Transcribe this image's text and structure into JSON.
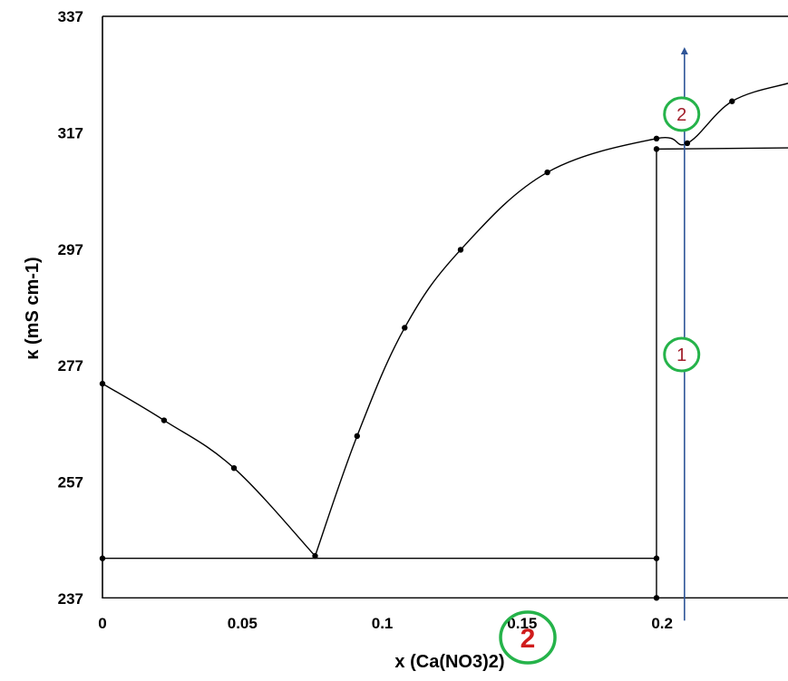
{
  "chart_data": {
    "type": "line",
    "xlabel": "x (Ca(NO3)2)",
    "ylabel": "κ (mS cm-1)",
    "xlim": [
      0,
      0.245
    ],
    "ylim": [
      237,
      337
    ],
    "x_ticks": [
      "0",
      "0.05",
      "0.1",
      "0.15",
      "0.2"
    ],
    "x_tick_values": [
      0,
      0.05,
      0.1,
      0.15,
      0.2
    ],
    "y_ticks": [
      "237",
      "257",
      "277",
      "297",
      "317",
      "337"
    ],
    "y_tick_values": [
      237,
      257,
      277,
      297,
      317,
      337
    ],
    "grid": false,
    "series": [
      {
        "values": [
          [
            0,
            273.9
          ],
          [
            0.022,
            267.6
          ],
          [
            0.047,
            259.4
          ],
          [
            0.076,
            244.3
          ]
        ]
      },
      {
        "values": [
          [
            0.076,
            244.3
          ],
          [
            0.091,
            264.9
          ],
          [
            0.108,
            283.5
          ],
          [
            0.128,
            296.9
          ],
          [
            0.159,
            310.2
          ],
          [
            0.198,
            316.0
          ],
          [
            0.209,
            315.2
          ],
          [
            0.225,
            322.4
          ],
          [
            0.245,
            325.5
          ]
        ]
      },
      {
        "values": [
          [
            0,
            243.9
          ],
          [
            0.198,
            243.9
          ]
        ]
      },
      {
        "values": [
          [
            0,
            237.1
          ],
          [
            0.245,
            237.1
          ]
        ]
      },
      {
        "values": [
          [
            0.198,
            314.2
          ],
          [
            0.245,
            314.4
          ]
        ]
      },
      {
        "values": [
          [
            0.198,
            237.1
          ],
          [
            0.198,
            314.2
          ]
        ]
      }
    ],
    "markers": [
      [
        0,
        273.9
      ],
      [
        0.022,
        267.6
      ],
      [
        0.047,
        259.4
      ],
      [
        0.076,
        244.3
      ],
      [
        0.091,
        264.9
      ],
      [
        0.108,
        283.5
      ],
      [
        0.128,
        296.9
      ],
      [
        0.159,
        310.2
      ],
      [
        0.198,
        316.0
      ],
      [
        0.209,
        315.2
      ],
      [
        0.225,
        322.4
      ],
      [
        0,
        243.9
      ],
      [
        0.198,
        243.9
      ],
      [
        0.198,
        314.2
      ],
      [
        0.198,
        237.1
      ]
    ],
    "annotations": [
      {
        "label": "1",
        "x": 0.207,
        "y": 278.9,
        "style": "circled"
      },
      {
        "label": "2",
        "x": 0.207,
        "y": 320.2,
        "style": "circled"
      },
      {
        "label": "2",
        "x": 0.152,
        "y": 230.3,
        "style": "circled-large"
      }
    ],
    "arrow": {
      "x": 0.208,
      "y_from": 237.1,
      "y_to": 331.7,
      "color": "#2f5597"
    },
    "line_color": "#000000",
    "circle_color": "#25b34a"
  }
}
